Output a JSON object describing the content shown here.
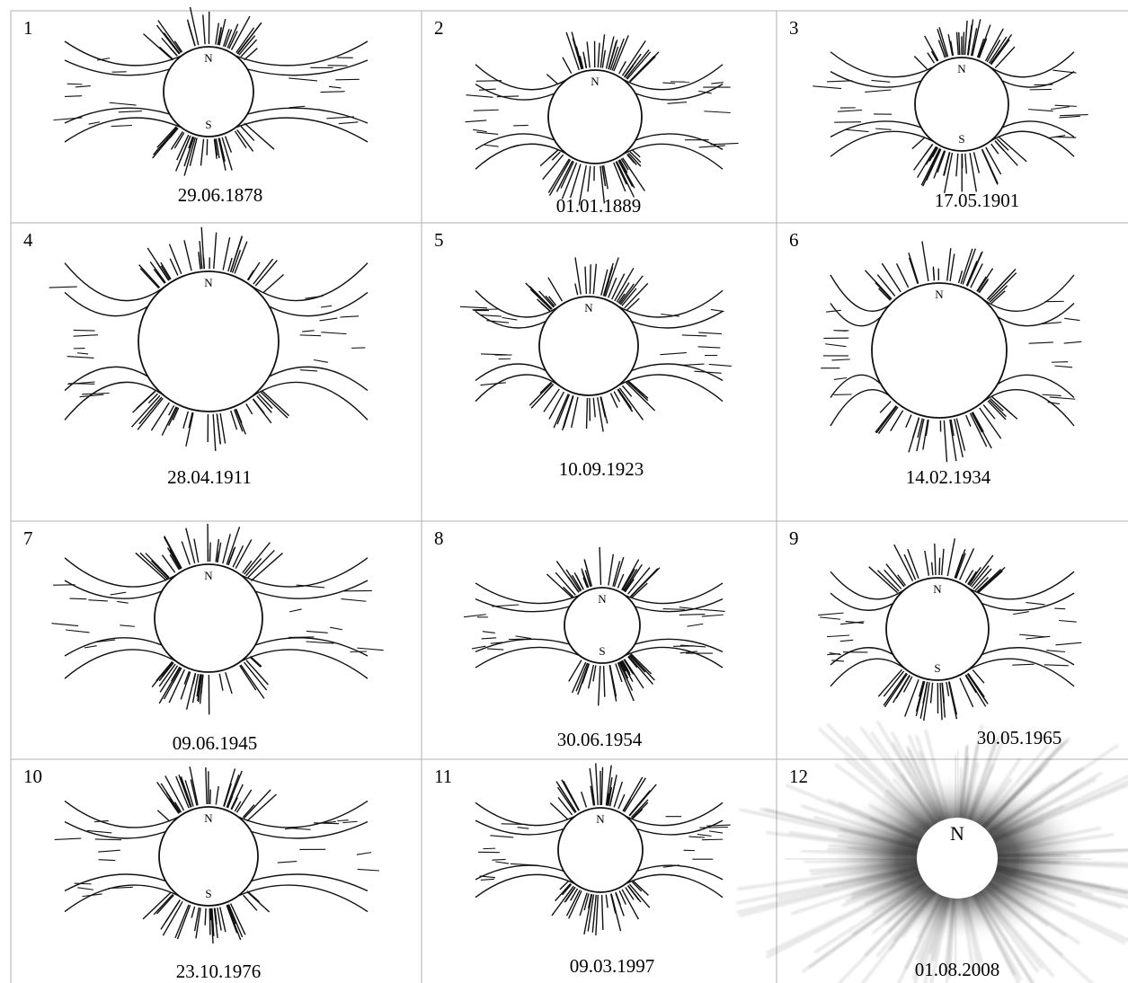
{
  "panels": [
    {
      "number": "1",
      "date": "29.06.1878",
      "poles": [
        "N",
        "S"
      ]
    },
    {
      "number": "2",
      "date": "01.01.1889",
      "poles": [
        "N"
      ]
    },
    {
      "number": "3",
      "date": "17.05.1901",
      "poles": [
        "N",
        "S"
      ]
    },
    {
      "number": "4",
      "date": "28.04.1911",
      "poles": [
        "N"
      ]
    },
    {
      "number": "5",
      "date": "10.09.1923",
      "poles": [
        "N"
      ]
    },
    {
      "number": "6",
      "date": "14.02.1934",
      "poles": [
        "N"
      ]
    },
    {
      "number": "7",
      "date": "09.06.1945",
      "poles": [
        "N"
      ]
    },
    {
      "number": "8",
      "date": "30.06.1954",
      "poles": [
        "N",
        "S"
      ]
    },
    {
      "number": "9",
      "date": "30.05.1965",
      "poles": [
        "N",
        "S"
      ]
    },
    {
      "number": "10",
      "date": "23.10.1976",
      "poles": [
        "N",
        "S"
      ]
    },
    {
      "number": "11",
      "date": "09.03.1997",
      "poles": [
        "N"
      ]
    },
    {
      "number": "12",
      "date": "01.08.2008",
      "poles": [
        "N"
      ]
    }
  ]
}
